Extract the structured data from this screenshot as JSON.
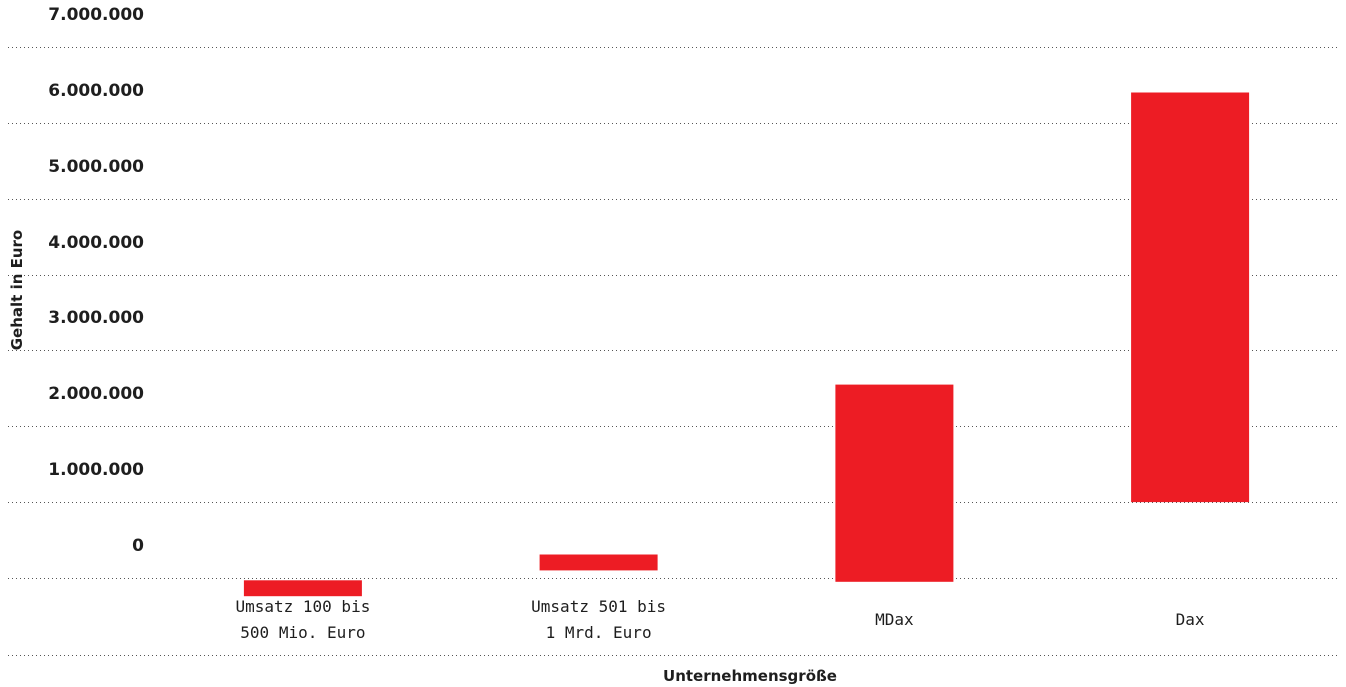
{
  "chart_data": {
    "type": "bar",
    "subtype": "floating-range",
    "title": "",
    "xlabel": "Unternehmensgröße",
    "ylabel": "Gehalt in Euro",
    "ylim": [
      -500000,
      7000000
    ],
    "yticks": [
      0,
      1000000,
      2000000,
      3000000,
      4000000,
      5000000,
      6000000,
      7000000
    ],
    "ytick_labels": [
      "0",
      "1.000.000",
      "2.000.000",
      "3.000.000",
      "4.000.000",
      "5.000.000",
      "6.000.000",
      "7.000.000"
    ],
    "grid": true,
    "legend": "none",
    "bar_color": "#ed1c24",
    "categories": [
      [
        "Umsatz 100 bis",
        "500 Mio. Euro"
      ],
      [
        "Umsatz 501 bis",
        "1 Mrd. Euro"
      ],
      [
        "MDax"
      ],
      [
        "Dax"
      ]
    ],
    "ranges": [
      {
        "low": -240000,
        "high": -30000
      },
      {
        "low": 100000,
        "high": 310000
      },
      {
        "low": -50000,
        "high": 2550000
      },
      {
        "low": 1000000,
        "high": 6400000
      }
    ]
  }
}
